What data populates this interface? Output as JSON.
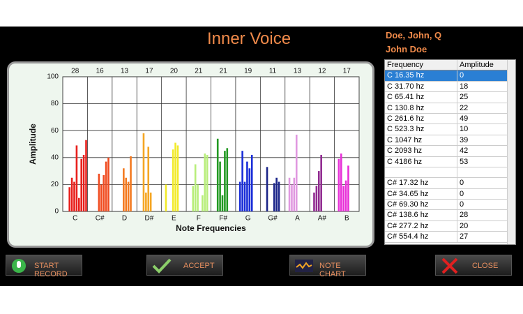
{
  "header": {
    "title": "Inner Voice",
    "patient": "Doe, John, Q",
    "user": "John Doe"
  },
  "chart_data": {
    "type": "bar",
    "ylabel": "Amplitude",
    "xlabel": "Note Frequencies",
    "categories": [
      "C",
      "C#",
      "D",
      "D#",
      "E",
      "F",
      "F#",
      "G",
      "G#",
      "A",
      "A#",
      "B"
    ],
    "counts": [
      28,
      16,
      13,
      17,
      20,
      21,
      21,
      19,
      11,
      13,
      12,
      17
    ],
    "colors": [
      "#e8201c",
      "#f04a1e",
      "#f47a20",
      "#f5a623",
      "#f2ea2a",
      "#b8ee7a",
      "#229922",
      "#1a2ed8",
      "#1a2488",
      "#e098e0",
      "#902a90",
      "#e830d8"
    ],
    "values": [
      [
        0,
        18,
        25,
        22,
        49,
        10,
        39,
        42,
        53
      ],
      [
        0,
        0,
        0,
        28,
        20,
        27,
        37,
        40,
        0
      ],
      [
        0,
        0,
        0,
        32,
        25,
        22,
        41,
        0,
        0
      ],
      [
        0,
        58,
        14,
        48,
        14,
        0,
        0,
        0,
        0
      ],
      [
        20,
        0,
        0,
        46,
        51,
        49,
        0,
        0,
        0
      ],
      [
        0,
        19,
        35,
        20,
        0,
        12,
        43,
        42,
        0
      ],
      [
        0,
        54,
        37,
        12,
        45,
        47,
        0,
        0,
        0
      ],
      [
        22,
        45,
        22,
        37,
        32,
        42,
        0,
        0,
        0
      ],
      [
        0,
        33,
        0,
        0,
        21,
        25,
        22,
        0,
        0
      ],
      [
        25,
        20,
        25,
        57,
        0,
        0,
        0,
        0,
        0
      ],
      [
        14,
        19,
        30,
        42,
        0,
        0,
        0,
        0,
        0
      ],
      [
        39,
        43,
        19,
        23,
        34,
        0,
        0,
        0,
        0
      ]
    ],
    "ylim": [
      0,
      100
    ],
    "yticks": [
      0,
      20,
      40,
      60,
      80,
      100
    ],
    "grid": true
  },
  "table": {
    "columns": [
      "Frequency",
      "Amplitude"
    ],
    "groups": [
      {
        "rows": [
          [
            "C 16.35 hz",
            0
          ],
          [
            "C 31.70 hz",
            18
          ],
          [
            "C 65.41 hz",
            25
          ],
          [
            "C 130.8 hz",
            22
          ],
          [
            "C 261.6 hz",
            49
          ],
          [
            "C 523.3 hz",
            10
          ],
          [
            "C 1047 hz",
            39
          ],
          [
            "C 2093 hz",
            42
          ],
          [
            "C 4186 hz",
            53
          ]
        ]
      },
      {
        "rows": [
          [
            "C# 17.32 hz",
            0
          ],
          [
            "C# 34.65 hz",
            0
          ],
          [
            "C# 69.30 hz",
            0
          ],
          [
            "C# 138.6 hz",
            28
          ],
          [
            "C# 277.2 hz",
            20
          ],
          [
            "C# 554.4 hz",
            27
          ]
        ]
      }
    ]
  },
  "buttons": [
    "START RECORD",
    "ACCEPT",
    "NOTE CHART",
    "CLOSE"
  ]
}
